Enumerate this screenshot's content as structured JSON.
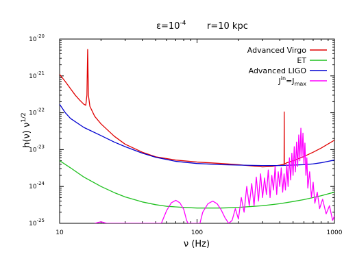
{
  "chart_data": {
    "type": "line",
    "title_epsilon": "ε=10",
    "title_epsilon_exp": "-4",
    "title_distance": "r=10 kpc",
    "xlabel": "ν (Hz)",
    "ylabel_main": "h(ν) ν",
    "ylabel_exp": "1/2",
    "x_scale": "log",
    "y_scale": "log",
    "xlim": [
      10,
      1000
    ],
    "ylim": [
      1e-25,
      1e-20
    ],
    "x_ticks": [
      "10",
      "100",
      "1000"
    ],
    "y_tick_exponents": [
      "-20",
      "-21",
      "-22",
      "-23",
      "-24",
      "-25"
    ],
    "y_tick_base": "10",
    "legend_position": "top-right",
    "series": [
      {
        "name": "Advanced Virgo",
        "color": "#e00000",
        "points": [
          [
            10,
            1.1e-21
          ],
          [
            11,
            7e-22
          ],
          [
            12,
            4.5e-22
          ],
          [
            13,
            3e-22
          ],
          [
            14,
            2.2e-22
          ],
          [
            15,
            1.7e-22
          ],
          [
            15.5,
            1.6e-22
          ],
          [
            15.8,
            3e-22
          ],
          [
            16,
            5.2e-21
          ],
          [
            16.2,
            3e-22
          ],
          [
            16.6,
            1.5e-22
          ],
          [
            18,
            8e-23
          ],
          [
            20,
            5e-23
          ],
          [
            25,
            2.3e-23
          ],
          [
            30,
            1.4e-23
          ],
          [
            40,
            8.5e-24
          ],
          [
            50,
            6.4e-24
          ],
          [
            70,
            5.2e-24
          ],
          [
            100,
            4.6e-24
          ],
          [
            150,
            4.2e-24
          ],
          [
            200,
            3.9e-24
          ],
          [
            250,
            3.6e-24
          ],
          [
            300,
            3.4e-24
          ],
          [
            350,
            3.5e-24
          ],
          [
            400,
            3.8e-24
          ],
          [
            430,
            4e-24
          ],
          [
            431,
            1.05e-22
          ],
          [
            432,
            4e-24
          ],
          [
            450,
            4.4e-24
          ],
          [
            500,
            5e-24
          ],
          [
            600,
            6.5e-24
          ],
          [
            700,
            8.5e-24
          ],
          [
            800,
            1.1e-23
          ],
          [
            1000,
            1.8e-23
          ]
        ]
      },
      {
        "name": "ET",
        "color": "#1fc01f",
        "points": [
          [
            10,
            5e-24
          ],
          [
            12,
            3.2e-24
          ],
          [
            15,
            1.8e-24
          ],
          [
            20,
            1e-24
          ],
          [
            25,
            6.8e-25
          ],
          [
            30,
            5.2e-25
          ],
          [
            40,
            3.8e-25
          ],
          [
            50,
            3.2e-25
          ],
          [
            60,
            2.9e-25
          ],
          [
            80,
            2.7e-25
          ],
          [
            100,
            2.6e-25
          ],
          [
            150,
            2.6e-25
          ],
          [
            200,
            2.7e-25
          ],
          [
            300,
            3e-25
          ],
          [
            400,
            3.4e-25
          ],
          [
            500,
            3.9e-25
          ],
          [
            600,
            4.4e-25
          ],
          [
            700,
            5e-25
          ],
          [
            800,
            5.6e-25
          ],
          [
            1000,
            7e-25
          ]
        ]
      },
      {
        "name": "Advanced LIGO",
        "color": "#0000d0",
        "points": [
          [
            10,
            1.7e-22
          ],
          [
            11,
            1e-22
          ],
          [
            12,
            7e-23
          ],
          [
            15,
            4e-23
          ],
          [
            20,
            2.4e-23
          ],
          [
            25,
            1.6e-23
          ],
          [
            30,
            1.2e-23
          ],
          [
            40,
            8e-24
          ],
          [
            50,
            6.2e-24
          ],
          [
            70,
            4.8e-24
          ],
          [
            100,
            4.2e-24
          ],
          [
            150,
            3.9e-24
          ],
          [
            200,
            3.8e-24
          ],
          [
            300,
            3.7e-24
          ],
          [
            400,
            3.7e-24
          ],
          [
            500,
            3.8e-24
          ],
          [
            600,
            3.9e-24
          ],
          [
            700,
            4.1e-24
          ],
          [
            800,
            4.4e-24
          ],
          [
            1000,
            5.2e-24
          ]
        ]
      },
      {
        "name": "J",
        "name_sup": "in",
        "name_mid": "=J",
        "name_sub": "max",
        "color": "#ff00ff",
        "points": [
          [
            18,
            1e-25
          ],
          [
            20,
            1.1e-25
          ],
          [
            22,
            1e-25
          ],
          [
            55,
            1e-25
          ],
          [
            60,
            2.2e-25
          ],
          [
            65,
            3.6e-25
          ],
          [
            70,
            4.2e-25
          ],
          [
            75,
            3.6e-25
          ],
          [
            80,
            2.4e-25
          ],
          [
            84,
            1.2e-25
          ],
          [
            86,
            1e-25
          ],
          [
            105,
            1e-25
          ],
          [
            110,
            2e-25
          ],
          [
            120,
            3.4e-25
          ],
          [
            130,
            4e-25
          ],
          [
            140,
            3.4e-25
          ],
          [
            150,
            2.3e-25
          ],
          [
            160,
            1.4e-25
          ],
          [
            170,
            1e-25
          ],
          [
            180,
            1.2e-25
          ],
          [
            190,
            2.5e-25
          ],
          [
            200,
            1.3e-25
          ],
          [
            210,
            5e-25
          ],
          [
            220,
            2e-25
          ],
          [
            230,
            1e-24
          ],
          [
            240,
            3e-25
          ],
          [
            250,
            1.2e-24
          ],
          [
            260,
            3e-25
          ],
          [
            270,
            1.8e-24
          ],
          [
            280,
            4e-25
          ],
          [
            290,
            2.2e-24
          ],
          [
            300,
            5e-25
          ],
          [
            310,
            1.7e-24
          ],
          [
            320,
            6e-25
          ],
          [
            330,
            2.8e-24
          ],
          [
            340,
            5e-25
          ],
          [
            350,
            2e-24
          ],
          [
            360,
            8e-25
          ],
          [
            370,
            3.5e-24
          ],
          [
            380,
            6e-25
          ],
          [
            390,
            2.5e-24
          ],
          [
            400,
            1e-24
          ],
          [
            410,
            3.2e-24
          ],
          [
            420,
            7e-25
          ],
          [
            430,
            2.2e-24
          ],
          [
            440,
            8e-25
          ],
          [
            450,
            4e-24
          ],
          [
            460,
            1e-24
          ],
          [
            470,
            6e-24
          ],
          [
            480,
            1.5e-24
          ],
          [
            490,
            8e-24
          ],
          [
            500,
            2e-24
          ],
          [
            510,
            1.2e-23
          ],
          [
            520,
            2.5e-24
          ],
          [
            530,
            1.6e-23
          ],
          [
            540,
            3.5e-24
          ],
          [
            550,
            2.5e-23
          ],
          [
            560,
            5e-24
          ],
          [
            570,
            3.8e-23
          ],
          [
            580,
            6e-24
          ],
          [
            590,
            2.8e-23
          ],
          [
            600,
            4e-24
          ],
          [
            610,
            1.5e-23
          ],
          [
            620,
            2e-24
          ],
          [
            630,
            6e-24
          ],
          [
            640,
            9e-25
          ],
          [
            660,
            2.5e-24
          ],
          [
            680,
            5e-25
          ],
          [
            700,
            1.3e-24
          ],
          [
            720,
            3.5e-25
          ],
          [
            750,
            7e-25
          ],
          [
            780,
            2.5e-25
          ],
          [
            820,
            4.5e-25
          ],
          [
            870,
            1.8e-25
          ],
          [
            920,
            3e-25
          ],
          [
            970,
            1.2e-25
          ],
          [
            1000,
            1.6e-25
          ]
        ]
      }
    ]
  }
}
